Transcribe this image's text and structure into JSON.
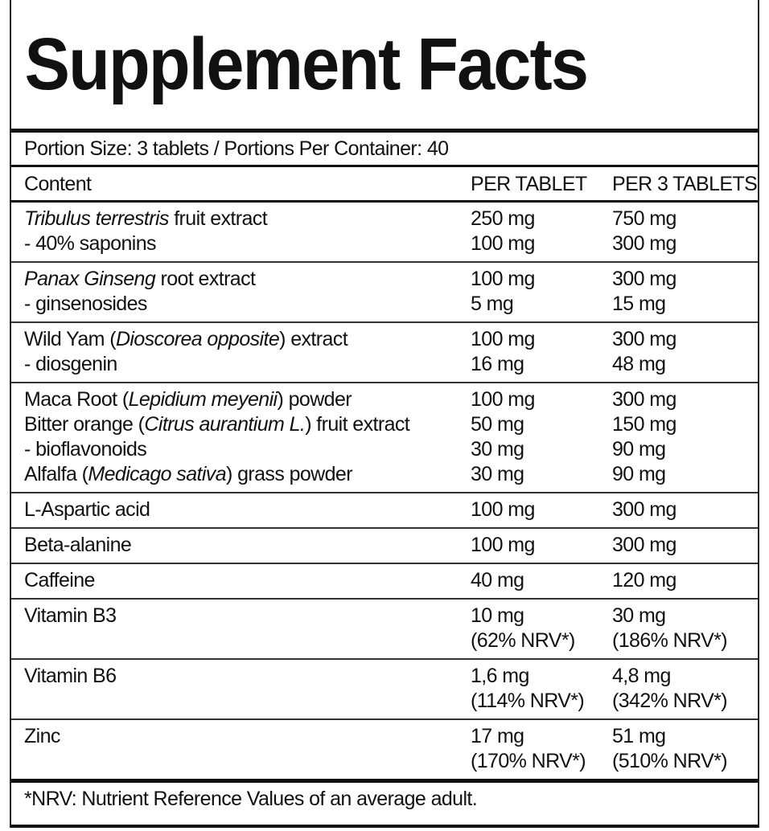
{
  "title": "Supplement Facts",
  "portion": "Portion Size: 3 tablets / Portions Per Container: 40",
  "header": {
    "content": "Content",
    "per_tablet": "PER TABLET",
    "per_3_tablets": "PER 3 TABLETS"
  },
  "groups": [
    {
      "label": [
        [
          {
            "text": "Tribulus terrestris",
            "italic": true
          },
          {
            "text": " fruit extract"
          }
        ],
        [
          {
            "text": "- 40% saponins"
          }
        ]
      ],
      "per_tablet": [
        "250 mg",
        "100 mg"
      ],
      "per_3_tablets": [
        "750 mg",
        "300 mg"
      ]
    },
    {
      "label": [
        [
          {
            "text": "Panax Ginseng",
            "italic": true
          },
          {
            "text": " root extract"
          }
        ],
        [
          {
            "text": "- ginsenosides"
          }
        ]
      ],
      "per_tablet": [
        "100 mg",
        "5 mg"
      ],
      "per_3_tablets": [
        "300 mg",
        "15 mg"
      ]
    },
    {
      "label": [
        [
          {
            "text": "Wild Yam ("
          },
          {
            "text": "Dioscorea opposite",
            "italic": true
          },
          {
            "text": ") extract"
          }
        ],
        [
          {
            "text": "- diosgenin"
          }
        ]
      ],
      "per_tablet": [
        "100 mg",
        "16 mg"
      ],
      "per_3_tablets": [
        "300 mg",
        "48 mg"
      ]
    },
    {
      "label": [
        [
          {
            "text": "Maca Root ("
          },
          {
            "text": "Lepidium meyenii",
            "italic": true
          },
          {
            "text": ") powder"
          }
        ],
        [
          {
            "text": "Bitter orange ("
          },
          {
            "text": "Citrus aurantium L.",
            "italic": true
          },
          {
            "text": ") fruit extract"
          }
        ],
        [
          {
            "text": "- bioflavonoids"
          }
        ],
        [
          {
            "text": "Alfalfa ("
          },
          {
            "text": "Medicago sativa",
            "italic": true
          },
          {
            "text": ") grass powder"
          }
        ]
      ],
      "per_tablet": [
        "100 mg",
        "50 mg",
        "30 mg",
        "30 mg"
      ],
      "per_3_tablets": [
        "300 mg",
        "150 mg",
        "90 mg",
        "90 mg"
      ]
    },
    {
      "label": [
        [
          {
            "text": "L-Aspartic acid"
          }
        ]
      ],
      "per_tablet": [
        "100 mg"
      ],
      "per_3_tablets": [
        "300 mg"
      ]
    },
    {
      "label": [
        [
          {
            "text": "Beta-alanine"
          }
        ]
      ],
      "per_tablet": [
        "100 mg"
      ],
      "per_3_tablets": [
        "300 mg"
      ]
    },
    {
      "label": [
        [
          {
            "text": "Caffeine"
          }
        ]
      ],
      "per_tablet": [
        "40 mg"
      ],
      "per_3_tablets": [
        "120 mg"
      ]
    },
    {
      "label": [
        [
          {
            "text": "Vitamin B3"
          }
        ]
      ],
      "per_tablet": [
        "10 mg",
        "(62% NRV*)"
      ],
      "per_3_tablets": [
        "30 mg",
        "(186% NRV*)"
      ]
    },
    {
      "label": [
        [
          {
            "text": "Vitamin B6"
          }
        ]
      ],
      "per_tablet": [
        "1,6 mg",
        "(114% NRV*)"
      ],
      "per_3_tablets": [
        "4,8 mg",
        "(342% NRV*)"
      ]
    },
    {
      "label": [
        [
          {
            "text": "Zinc"
          }
        ]
      ],
      "per_tablet": [
        "17 mg",
        "(170% NRV*)"
      ],
      "per_3_tablets": [
        "51 mg",
        "(510% NRV*)"
      ]
    }
  ],
  "footnote": "*NRV: Nutrient Reference Values of an average adult."
}
